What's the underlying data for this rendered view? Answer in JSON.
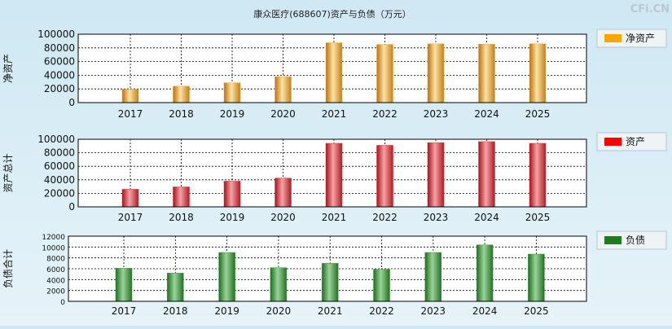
{
  "title": "康众医疗(688607)资产与负债（万元）",
  "watermark": "CFi.CN",
  "chart_data": [
    {
      "type": "bar",
      "ylabel": "净资产",
      "legend": "净资产",
      "legend_color": "#FFA500",
      "bar_color": "#F2A93B",
      "categories": [
        "2017",
        "2018",
        "2019",
        "2020",
        "2021",
        "2022",
        "2023",
        "2024",
        "2025"
      ],
      "values": [
        19500,
        24000,
        29000,
        38000,
        87500,
        85000,
        86000,
        85500,
        86000
      ],
      "ylim": [
        0,
        100000
      ],
      "yticks": [
        0,
        20000,
        40000,
        60000,
        80000,
        100000
      ],
      "yticklabels": [
        "0",
        "20000",
        "40000",
        "60000",
        "80000",
        "100000"
      ]
    },
    {
      "type": "bar",
      "ylabel": "资产总计",
      "legend": "资产",
      "legend_color": "#FF0000",
      "bar_color": "#D9373E",
      "categories": [
        "2017",
        "2018",
        "2019",
        "2020",
        "2021",
        "2022",
        "2023",
        "2024",
        "2025"
      ],
      "values": [
        26000,
        29500,
        38000,
        42500,
        94000,
        91000,
        95000,
        96500,
        94000
      ],
      "ylim": [
        0,
        100000
      ],
      "yticks": [
        0,
        20000,
        40000,
        60000,
        80000,
        100000
      ],
      "yticklabels": [
        "0",
        "20000",
        "40000",
        "60000",
        "80000",
        "100000"
      ]
    },
    {
      "type": "bar",
      "ylabel": "负债合计",
      "legend": "负债",
      "legend_color": "#1E7B1E",
      "bar_color": "#3E9B3E",
      "categories": [
        "2017",
        "2018",
        "2019",
        "2020",
        "2021",
        "2022",
        "2023",
        "2024",
        "2025"
      ],
      "values": [
        6100,
        5200,
        9000,
        6200,
        7000,
        5900,
        9000,
        10400,
        8700
      ],
      "ylim": [
        0,
        12000
      ],
      "yticks": [
        0,
        2000,
        4000,
        6000,
        8000,
        10000,
        12000
      ],
      "yticklabels": [
        "0",
        "2000",
        "4000",
        "6000",
        "8000",
        "10000",
        "12000"
      ]
    }
  ]
}
